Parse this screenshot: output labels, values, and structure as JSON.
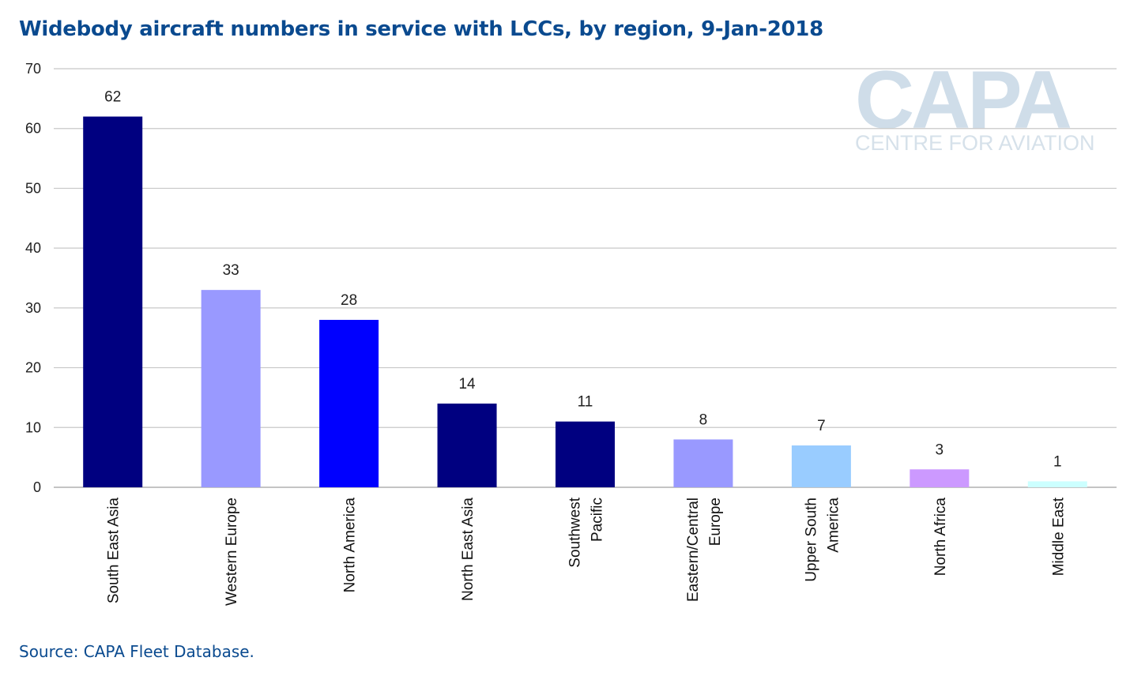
{
  "title": "Widebody aircraft numbers in service with LCCs, by region, 9-Jan-2018",
  "source": "Source: CAPA Fleet Database.",
  "watermark": {
    "logo": "CAPA",
    "tagline": "CENTRE FOR AVIATION"
  },
  "chart_data": {
    "type": "bar",
    "categories": [
      [
        "South East Asia"
      ],
      [
        "Western Europe"
      ],
      [
        "North America"
      ],
      [
        "North East Asia"
      ],
      [
        "Southwest",
        "Pacific"
      ],
      [
        "Eastern/Central",
        "Europe"
      ],
      [
        "Upper South",
        "America"
      ],
      [
        "North Africa"
      ],
      [
        "Middle East"
      ]
    ],
    "values": [
      62,
      33,
      28,
      14,
      11,
      8,
      7,
      3,
      1
    ],
    "colors": [
      "#000080",
      "#9999ff",
      "#0000ff",
      "#000080",
      "#000080",
      "#9999ff",
      "#99ccff",
      "#cc99ff",
      "#ccffff"
    ],
    "ylim": [
      0,
      70
    ],
    "yticks": [
      0,
      10,
      20,
      30,
      40,
      50,
      60,
      70
    ],
    "grid": true,
    "legend": "none",
    "xlabel": "",
    "ylabel": ""
  }
}
